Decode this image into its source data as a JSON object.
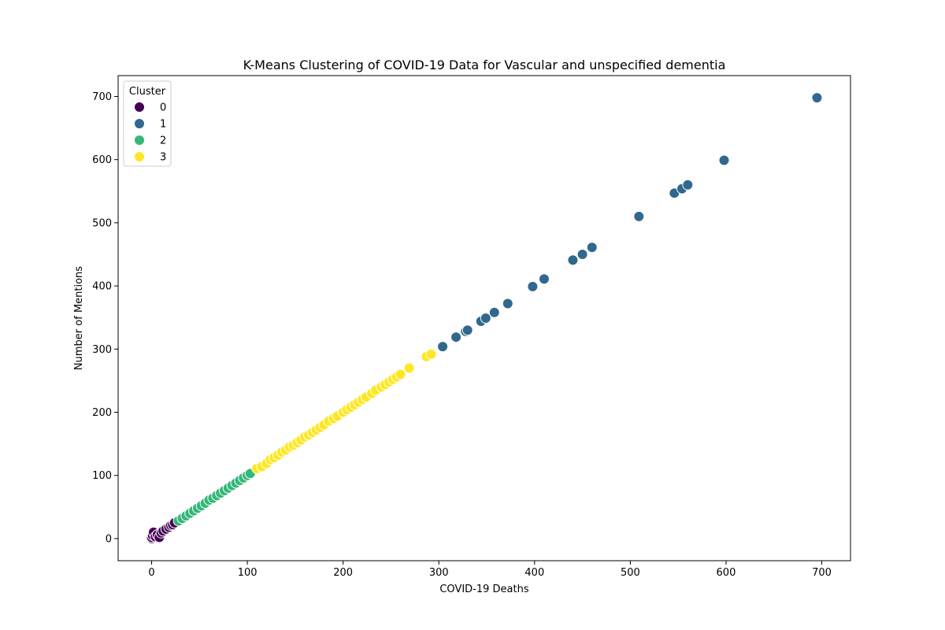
{
  "chart_data": {
    "type": "scatter",
    "title": "K-Means Clustering of COVID-19 Data for Vascular and unspecified dementia",
    "xlabel": "COVID-19 Deaths",
    "ylabel": "Number of Mentions",
    "xlim": [
      -35,
      730
    ],
    "ylim": [
      -35,
      733
    ],
    "xticks": [
      0,
      100,
      200,
      300,
      400,
      500,
      600,
      700
    ],
    "yticks": [
      0,
      100,
      200,
      300,
      400,
      500,
      600,
      700
    ],
    "legend": {
      "title": "Cluster",
      "position": "top-left",
      "entries": [
        "0",
        "1",
        "2",
        "3"
      ]
    },
    "colors": {
      "0": "#440154",
      "1": "#31688e",
      "2": "#35b779",
      "3": "#fde725"
    },
    "series": [
      {
        "name": "0",
        "points": [
          [
            0,
            0
          ],
          [
            0,
            2
          ],
          [
            1,
            5
          ],
          [
            2,
            10
          ],
          [
            4,
            3
          ],
          [
            6,
            6
          ],
          [
            8,
            2
          ],
          [
            10,
            9
          ],
          [
            12,
            12
          ],
          [
            15,
            15
          ],
          [
            18,
            18
          ],
          [
            20,
            21
          ],
          [
            22,
            22
          ],
          [
            24,
            25
          ]
        ]
      },
      {
        "name": "1",
        "points": [
          [
            304,
            304
          ],
          [
            318,
            319
          ],
          [
            328,
            328
          ],
          [
            330,
            330
          ],
          [
            344,
            344
          ],
          [
            349,
            349
          ],
          [
            358,
            358
          ],
          [
            372,
            372
          ],
          [
            398,
            399
          ],
          [
            410,
            411
          ],
          [
            440,
            441
          ],
          [
            450,
            450
          ],
          [
            460,
            461
          ],
          [
            509,
            510
          ],
          [
            546,
            547
          ],
          [
            554,
            554
          ],
          [
            560,
            560
          ],
          [
            598,
            599
          ],
          [
            695,
            698
          ]
        ]
      },
      {
        "name": "2",
        "points": [
          [
            28,
            28
          ],
          [
            32,
            32
          ],
          [
            36,
            36
          ],
          [
            40,
            40
          ],
          [
            44,
            44
          ],
          [
            48,
            48
          ],
          [
            52,
            52
          ],
          [
            56,
            56
          ],
          [
            60,
            61
          ],
          [
            64,
            64
          ],
          [
            68,
            68
          ],
          [
            72,
            72
          ],
          [
            76,
            76
          ],
          [
            80,
            80
          ],
          [
            84,
            84
          ],
          [
            88,
            88
          ],
          [
            92,
            92
          ],
          [
            96,
            96
          ],
          [
            100,
            100
          ],
          [
            103,
            103
          ]
        ]
      },
      {
        "name": "3",
        "points": [
          [
            110,
            111
          ],
          [
            115,
            114
          ],
          [
            120,
            119
          ],
          [
            124,
            125
          ],
          [
            128,
            128
          ],
          [
            132,
            132
          ],
          [
            136,
            137
          ],
          [
            140,
            140
          ],
          [
            144,
            145
          ],
          [
            148,
            148
          ],
          [
            152,
            152
          ],
          [
            156,
            156
          ],
          [
            160,
            161
          ],
          [
            164,
            164
          ],
          [
            168,
            168
          ],
          [
            172,
            172
          ],
          [
            176,
            176
          ],
          [
            180,
            180
          ],
          [
            185,
            186
          ],
          [
            190,
            190
          ],
          [
            194,
            194
          ],
          [
            200,
            200
          ],
          [
            204,
            204
          ],
          [
            208,
            208
          ],
          [
            212,
            212
          ],
          [
            216,
            216
          ],
          [
            220,
            220
          ],
          [
            224,
            224
          ],
          [
            230,
            230
          ],
          [
            234,
            235
          ],
          [
            240,
            240
          ],
          [
            244,
            244
          ],
          [
            248,
            248
          ],
          [
            252,
            252
          ],
          [
            256,
            256
          ],
          [
            260,
            260
          ],
          [
            269,
            270
          ],
          [
            287,
            288
          ],
          [
            292,
            292
          ]
        ]
      }
    ]
  }
}
